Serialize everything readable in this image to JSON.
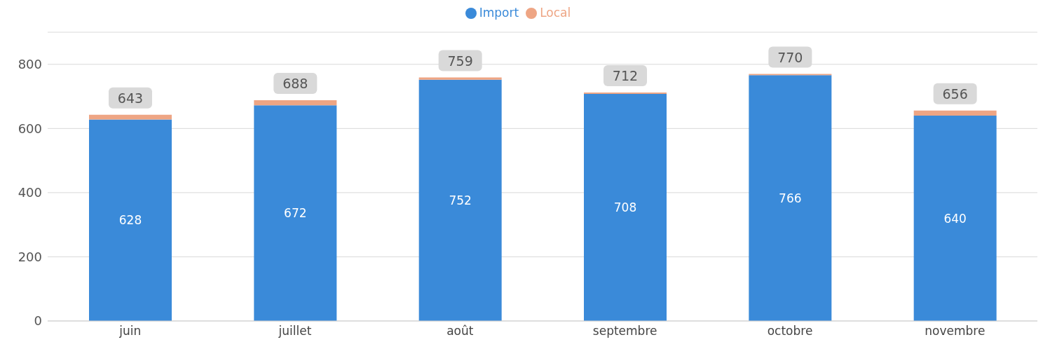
{
  "chart_data": {
    "type": "bar",
    "stacked": true,
    "categories": [
      "juin",
      "juillet",
      "août",
      "septembre",
      "octobre",
      "novembre"
    ],
    "series": [
      {
        "name": "Import",
        "color": "#3a8ad9",
        "values": [
          628,
          672,
          752,
          708,
          766,
          640
        ],
        "value_labels": [
          "628",
          "672",
          "752",
          "708",
          "766",
          "640"
        ]
      },
      {
        "name": "Local",
        "color": "#eea584",
        "values": [
          15,
          16,
          7,
          4,
          4,
          16
        ]
      }
    ],
    "totals": [
      "643",
      "688",
      "759",
      "712",
      "770",
      "656"
    ],
    "ylim": [
      0,
      900
    ],
    "yticks": [
      0,
      200,
      400,
      600,
      800
    ],
    "grid": "y",
    "legend": "top"
  }
}
